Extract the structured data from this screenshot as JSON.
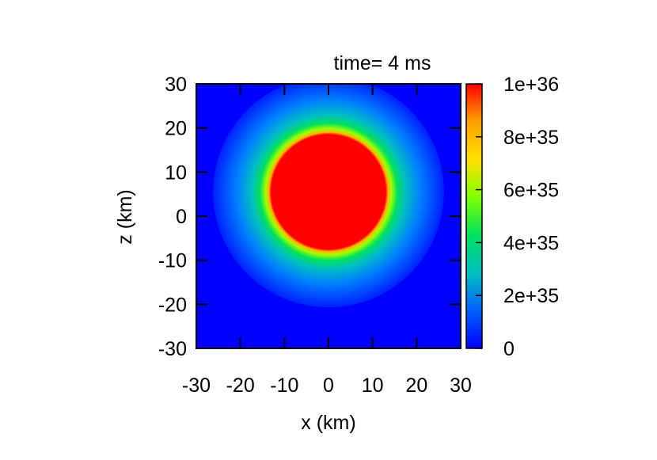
{
  "chart_data": {
    "type": "heatmap",
    "title": "time= 4 ms",
    "xlabel": "x (km)",
    "ylabel": "z (km)",
    "xlim": [
      -30,
      30
    ],
    "ylim": [
      -30,
      30
    ],
    "x_ticks": [
      "-30",
      "-20",
      "-10",
      "0",
      "10",
      "20",
      "30"
    ],
    "y_ticks": [
      "30",
      "20",
      "10",
      "0",
      "-10",
      "-20",
      "-30"
    ],
    "x_tick_values": [
      -30,
      -20,
      -10,
      0,
      10,
      20,
      30
    ],
    "y_tick_values": [
      30,
      20,
      10,
      0,
      -10,
      -20,
      -30
    ],
    "colorbar": {
      "range": [
        0,
        1e+36
      ],
      "tick_labels": [
        "1e+36",
        "8e+35",
        "6e+35",
        "4e+35",
        "2e+35",
        "0"
      ],
      "tick_values": [
        1e+36,
        8e+35,
        6e+35,
        4e+35,
        2e+35,
        0
      ],
      "colormap": [
        "#0000ff",
        "#0060ff",
        "#00c0c0",
        "#00e060",
        "#80ff00",
        "#ffe000",
        "#ffa000",
        "#ff0000"
      ]
    },
    "feature": {
      "shape": "disk",
      "center_x_km": 0,
      "center_z_km": 5.5,
      "radius_km": 13,
      "core_value": 1e+36,
      "halo_extent_km": 6,
      "background_value": 0
    }
  }
}
